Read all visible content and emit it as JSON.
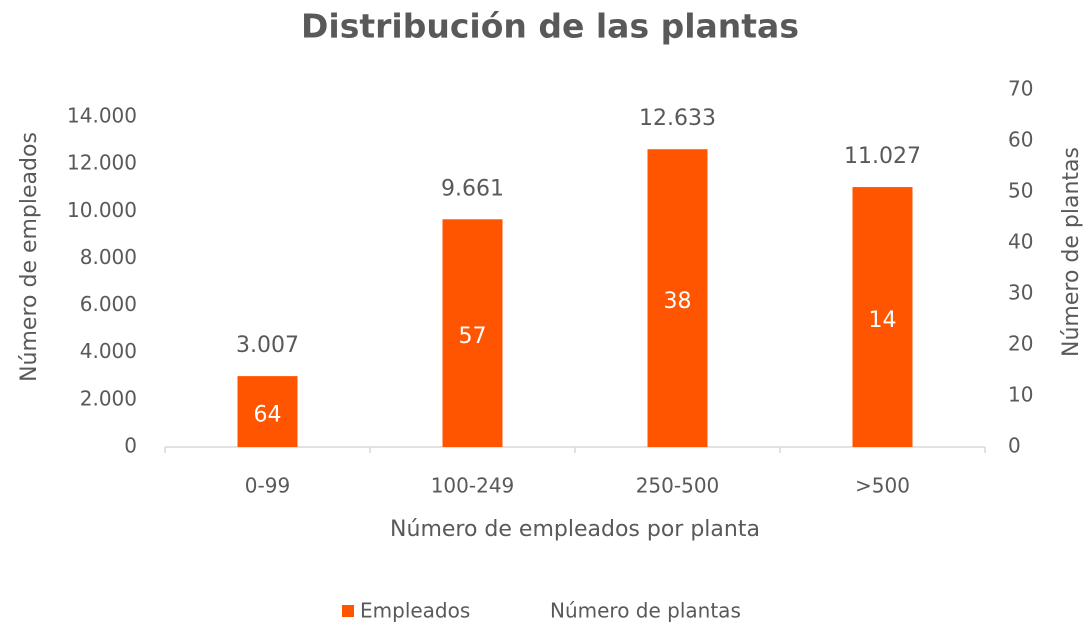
{
  "chart_data": {
    "type": "bar",
    "title": "Distribución de las plantas",
    "x_label": "Número de empleados por planta",
    "y_label": "Número de empleados",
    "y2_label": "Número de plantas",
    "categories": [
      "0-99",
      "100-249",
      "250-500",
      ">500"
    ],
    "series": [
      {
        "name": "Empleados",
        "color": "#ff5500",
        "values": [
          3007,
          9661,
          12633,
          11027
        ],
        "value_labels": [
          "3.007",
          "9.661",
          "12.633",
          "11.027"
        ]
      },
      {
        "name": "Número de plantas",
        "axis": "y2",
        "values": [
          64,
          57,
          38,
          14
        ]
      }
    ],
    "ylim": [
      0,
      14000
    ],
    "yticks": [
      0,
      {
        "value": 2000,
        "label": "2.000"
      },
      {
        "value": 4000,
        "label": "4.000"
      },
      {
        "value": 6000,
        "label": "6.000"
      },
      {
        "value": 8000,
        "label": "8.000"
      },
      {
        "value": 10000,
        "label": "10.000"
      },
      {
        "value": 12000,
        "label": "12.000"
      },
      {
        "value": 14000,
        "label": "14.000"
      }
    ],
    "y2lim": [
      0,
      70
    ],
    "y2ticks": [
      0,
      10,
      20,
      30,
      40,
      50,
      60,
      70
    ],
    "legend": "bottom"
  }
}
